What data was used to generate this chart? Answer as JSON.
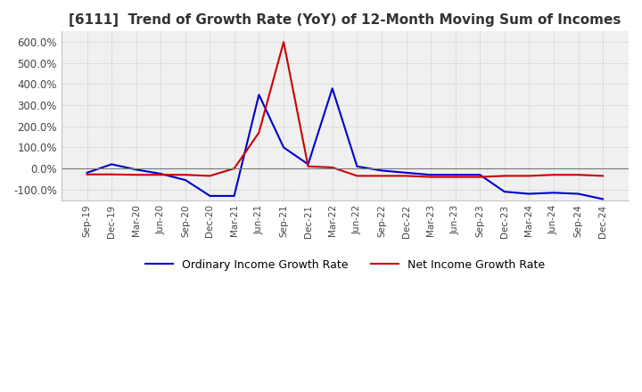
{
  "title": "[6111]  Trend of Growth Rate (YoY) of 12-Month Moving Sum of Incomes",
  "title_fontsize": 11,
  "title_color": "#333333",
  "background_color": "#ffffff",
  "plot_bg_color": "#f0f0f0",
  "grid_color": "#aaaaaa",
  "ylim": [
    -150,
    650
  ],
  "yticks": [
    -100,
    0,
    100,
    200,
    300,
    400,
    500,
    600
  ],
  "ytick_labels": [
    "-100.0%",
    "0.0%",
    "100.0%",
    "200.0%",
    "300.0%",
    "400.0%",
    "500.0%",
    "600.0%"
  ],
  "ordinary_color": "#0000cc",
  "net_color": "#cc0000",
  "legend_labels": [
    "Ordinary Income Growth Rate",
    "Net Income Growth Rate"
  ],
  "dates": [
    "Sep-19",
    "Dec-19",
    "Mar-20",
    "Jun-20",
    "Sep-20",
    "Dec-20",
    "Mar-21",
    "Jun-21",
    "Sep-21",
    "Dec-21",
    "Mar-22",
    "Jun-22",
    "Sep-22",
    "Dec-22",
    "Mar-23",
    "Jun-23",
    "Sep-23",
    "Dec-23",
    "Mar-24",
    "Jun-24",
    "Sep-24",
    "Dec-24"
  ],
  "ordinary_income": [
    -20,
    20,
    -5,
    -25,
    -55,
    -130,
    -130,
    350,
    100,
    20,
    380,
    10,
    -10,
    -20,
    -30,
    -30,
    -30,
    -110,
    -120,
    -115,
    -120,
    -145
  ],
  "net_income": [
    -28,
    -28,
    -30,
    -30,
    -30,
    -35,
    0,
    170,
    600,
    10,
    5,
    -35,
    -35,
    -35,
    -40,
    -40,
    -40,
    -35,
    -35,
    -30,
    -30,
    -35
  ]
}
